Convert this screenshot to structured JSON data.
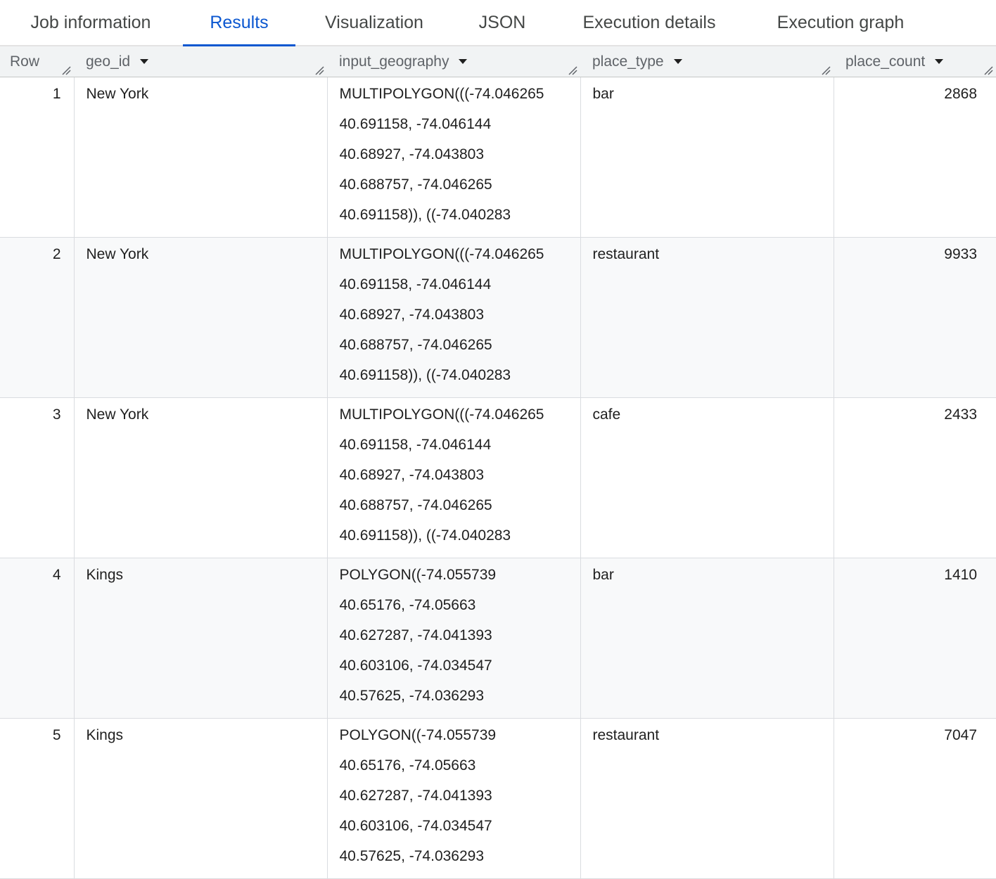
{
  "tabs": [
    {
      "label": "Job information"
    },
    {
      "label": "Results",
      "active": true
    },
    {
      "label": "Visualization"
    },
    {
      "label": "JSON"
    },
    {
      "label": "Execution details"
    },
    {
      "label": "Execution graph"
    }
  ],
  "accent_color": "#0b57d0",
  "columns": [
    "Row",
    "geo_id",
    "input_geography",
    "place_type",
    "place_count"
  ],
  "rows": [
    {
      "row": "1",
      "geo_id": "New York",
      "input_geography": [
        "MULTIPOLYGON(((-74.046265",
        "40.691158, -74.046144",
        "40.68927, -74.043803",
        "40.688757, -74.046265",
        "40.691158)), ((-74.040283"
      ],
      "place_type": "bar",
      "place_count": "2868"
    },
    {
      "row": "2",
      "geo_id": "New York",
      "input_geography": [
        "MULTIPOLYGON(((-74.046265",
        "40.691158, -74.046144",
        "40.68927, -74.043803",
        "40.688757, -74.046265",
        "40.691158)), ((-74.040283"
      ],
      "place_type": "restaurant",
      "place_count": "9933"
    },
    {
      "row": "3",
      "geo_id": "New York",
      "input_geography": [
        "MULTIPOLYGON(((-74.046265",
        "40.691158, -74.046144",
        "40.68927, -74.043803",
        "40.688757, -74.046265",
        "40.691158)), ((-74.040283"
      ],
      "place_type": "cafe",
      "place_count": "2433"
    },
    {
      "row": "4",
      "geo_id": "Kings",
      "input_geography": [
        "POLYGON((-74.055739",
        "40.65176, -74.05663",
        "40.627287, -74.041393",
        "40.603106, -74.034547",
        "40.57625, -74.036293"
      ],
      "place_type": "bar",
      "place_count": "1410"
    },
    {
      "row": "5",
      "geo_id": "Kings",
      "input_geography": [
        "POLYGON((-74.055739",
        "40.65176, -74.05663",
        "40.627287, -74.041393",
        "40.603106, -74.034547",
        "40.57625, -74.036293"
      ],
      "place_type": "restaurant",
      "place_count": "7047"
    }
  ]
}
